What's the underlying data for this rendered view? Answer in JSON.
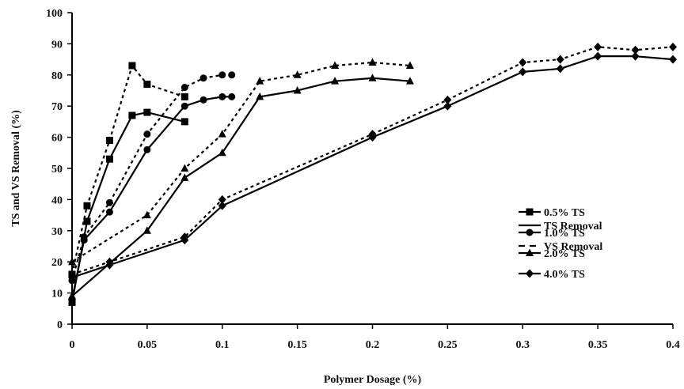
{
  "chart_data": {
    "type": "line",
    "title": "",
    "xlabel": "Polymer Dosage (%)",
    "ylabel": "TS and VS Removal (%)",
    "xlim": [
      0,
      0.4
    ],
    "ylim": [
      0,
      100
    ],
    "x_ticks": [
      "0",
      "0.05",
      "0.1",
      "0.15",
      "0.2",
      "0.25",
      "0.3",
      "0.35",
      "0.4"
    ],
    "y_ticks": [
      "0",
      "10",
      "20",
      "30",
      "40",
      "50",
      "60",
      "70",
      "80",
      "90",
      "100"
    ],
    "grid": false,
    "legend_position": "right",
    "legend": {
      "line_styles": [
        {
          "label": "TS Removal",
          "dash": "solid"
        },
        {
          "label": "VS Removal",
          "dash": "dashed"
        }
      ],
      "markers": [
        {
          "label": "0.5% TS",
          "marker": "square"
        },
        {
          "label": "1.0% TS",
          "marker": "circle"
        },
        {
          "label": "2.0% TS",
          "marker": "triangle"
        },
        {
          "label": "4.0% TS",
          "marker": "diamond"
        }
      ]
    },
    "series": [
      {
        "name": "0.5% TS",
        "removal": "TS",
        "dash": "solid",
        "marker": "square",
        "x": [
          0,
          0.01,
          0.025,
          0.04,
          0.05,
          0.075
        ],
        "y": [
          7,
          33,
          53,
          67,
          68,
          65
        ]
      },
      {
        "name": "0.5% TS",
        "removal": "VS",
        "dash": "dashed",
        "marker": "square",
        "x": [
          0,
          0.01,
          0.025,
          0.04,
          0.05,
          0.075
        ],
        "y": [
          16,
          38,
          59,
          83,
          77,
          73
        ]
      },
      {
        "name": "1.0% TS",
        "removal": "TS",
        "dash": "solid",
        "marker": "circle",
        "x": [
          0,
          0.008,
          0.025,
          0.05,
          0.075,
          0.0875,
          0.1,
          0.1063
        ],
        "y": [
          8,
          27,
          36,
          56,
          70,
          72,
          73,
          73
        ]
      },
      {
        "name": "1.0% TS",
        "removal": "VS",
        "dash": "dashed",
        "marker": "circle",
        "x": [
          0,
          0.008,
          0.025,
          0.05,
          0.075,
          0.0875,
          0.1,
          0.1063
        ],
        "y": [
          14,
          28,
          39,
          61,
          76,
          79,
          80,
          80
        ]
      },
      {
        "name": "2.0% TS",
        "removal": "TS",
        "dash": "solid",
        "marker": "triangle",
        "x": [
          0,
          0.05,
          0.075,
          0.1,
          0.125,
          0.15,
          0.175,
          0.2,
          0.225
        ],
        "y": [
          9,
          30,
          47,
          55,
          73,
          75,
          78,
          79,
          78
        ]
      },
      {
        "name": "2.0% TS",
        "removal": "VS",
        "dash": "dashed",
        "marker": "triangle",
        "x": [
          0,
          0.05,
          0.075,
          0.1,
          0.125,
          0.15,
          0.175,
          0.2,
          0.225
        ],
        "y": [
          20,
          35,
          50,
          61,
          78,
          80,
          83,
          84,
          83
        ]
      },
      {
        "name": "4.0% TS",
        "removal": "TS",
        "dash": "solid",
        "marker": "diamond",
        "x": [
          0,
          0.025,
          0.075,
          0.1,
          0.2,
          0.25,
          0.3,
          0.325,
          0.35,
          0.375,
          0.4
        ],
        "y": [
          15,
          19,
          27,
          38,
          60,
          70,
          81,
          82,
          86,
          86,
          85
        ]
      },
      {
        "name": "4.0% TS",
        "removal": "VS",
        "dash": "dashed",
        "marker": "diamond",
        "x": [
          0,
          0.025,
          0.075,
          0.1,
          0.2,
          0.25,
          0.3,
          0.325,
          0.35,
          0.375,
          0.4
        ],
        "y": [
          16,
          20,
          28,
          40,
          61,
          72,
          84,
          85,
          89,
          88,
          89
        ]
      }
    ]
  }
}
